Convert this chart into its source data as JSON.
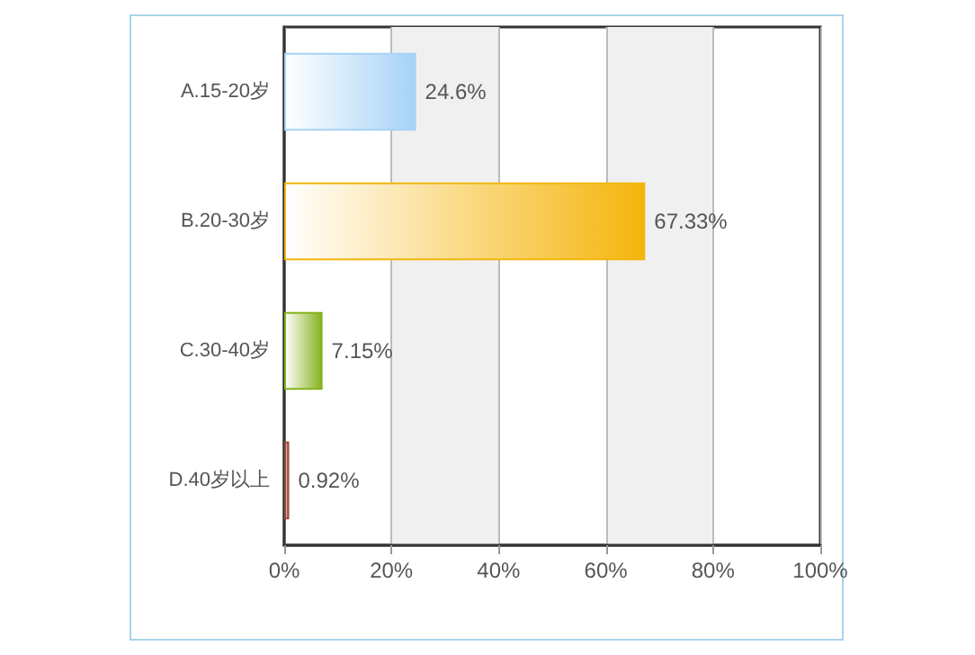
{
  "chart_data": {
    "type": "bar",
    "orientation": "horizontal",
    "categories": [
      "A.15-20岁",
      "B.20-30岁",
      "C.30-40岁",
      "D.40岁以上"
    ],
    "values": [
      24.6,
      67.33,
      7.15,
      0.92
    ],
    "colors": [
      "#a6d2f7",
      "#f4b50c",
      "#86b21e",
      "#9b4b3a"
    ],
    "value_labels": [
      "24.6%",
      "67.33%",
      "7.15%",
      "0.92%"
    ],
    "xlim": [
      0,
      100
    ],
    "xticks": [
      {
        "value": 0,
        "label": "0%"
      },
      {
        "value": 20,
        "label": "20%"
      },
      {
        "value": 40,
        "label": "40%"
      },
      {
        "value": 60,
        "label": "60%"
      },
      {
        "value": 80,
        "label": "80%"
      },
      {
        "value": 100,
        "label": "100%"
      }
    ],
    "grid": "x"
  }
}
